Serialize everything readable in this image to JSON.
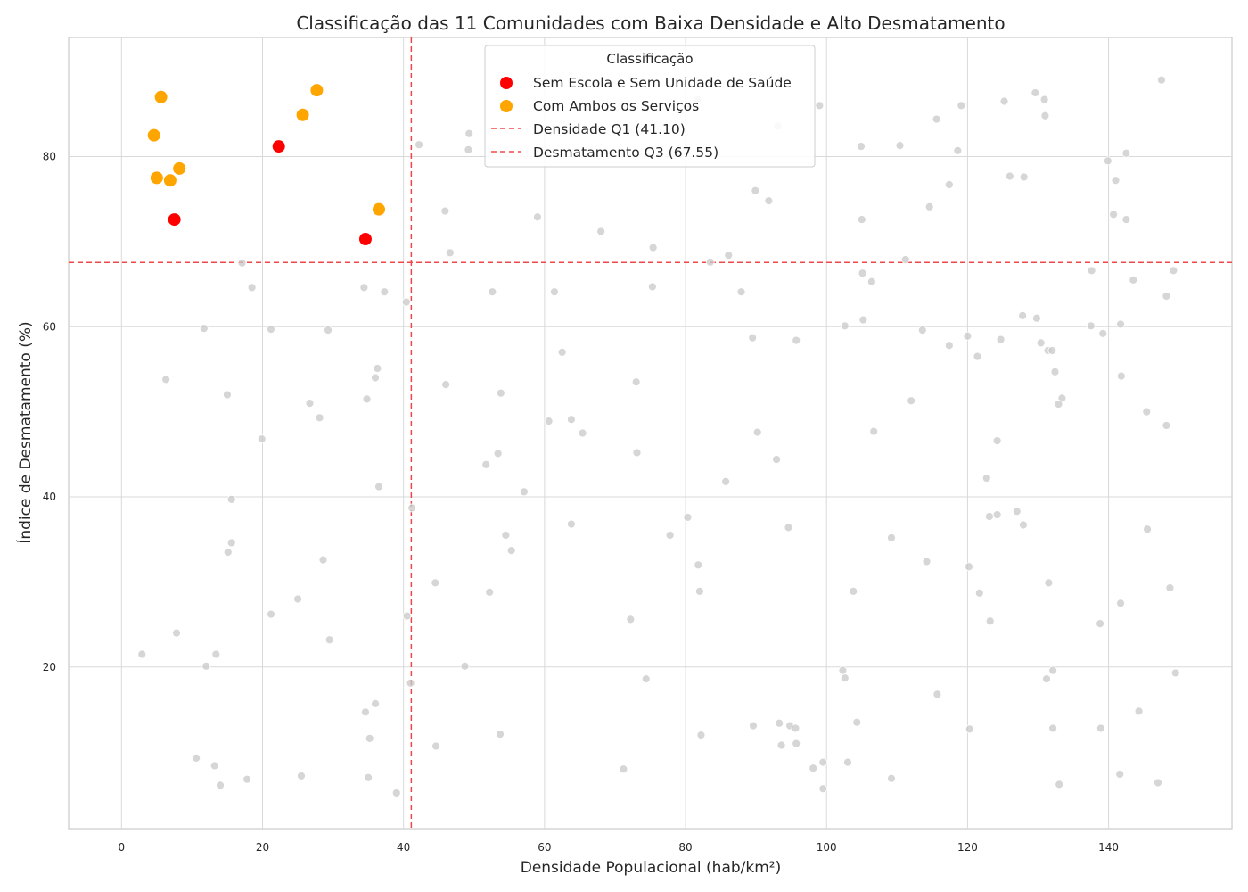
{
  "chart_data": {
    "type": "scatter",
    "title": "Classificação das 11 Comunidades com Baixa Densidade e Alto Desmatamento",
    "xlabel": "Densidade Populacional (hab/km²)",
    "ylabel": "Índice de Desmatamento (%)",
    "xlim": [
      -7.5,
      157.5
    ],
    "ylim": [
      1.0,
      94.0
    ],
    "xticks": [
      "0",
      "20",
      "40",
      "60",
      "80",
      "100",
      "120",
      "140"
    ],
    "yticks": [
      "20",
      "40",
      "60",
      "80"
    ],
    "grid": true,
    "legend": {
      "title": "Classificação",
      "placement": "top-center",
      "entries": [
        "Sem Escola e Sem Unidade de Saúde",
        "Com Ambos os Serviços",
        "Densidade Q1 (41.10)",
        "Desmatamento Q3 (67.55)"
      ]
    },
    "reference_lines": [
      {
        "axis": "x",
        "value": 41.1,
        "label": "Densidade Q1 (41.10)",
        "color": "#f0484a"
      },
      {
        "axis": "y",
        "value": 67.55,
        "label": "Desmatamento Q3 (67.55)",
        "color": "#f0484a"
      }
    ],
    "series": [
      {
        "name": "Sem Escola e Sem Unidade de Saúde",
        "color": "#ff0000",
        "points": [
          [
            22.3,
            81.2
          ],
          [
            7.5,
            72.6
          ],
          [
            34.6,
            70.3
          ]
        ]
      },
      {
        "name": "Com Ambos os Serviços",
        "color": "#ffa500",
        "points": [
          [
            5.6,
            87.0
          ],
          [
            4.6,
            82.5
          ],
          [
            27.7,
            87.8
          ],
          [
            25.7,
            84.9
          ],
          [
            8.2,
            78.6
          ],
          [
            5.0,
            77.5
          ],
          [
            6.9,
            77.2
          ],
          [
            36.5,
            73.8
          ]
        ]
      },
      {
        "color": "#c8c8c8",
        "points": [
          [
            147.5,
            89.0
          ],
          [
            129.6,
            87.5
          ],
          [
            130.9,
            86.7
          ],
          [
            125.2,
            86.5
          ],
          [
            119.1,
            86.0
          ],
          [
            99.0,
            86.0
          ],
          [
            81.7,
            86.7
          ],
          [
            131.0,
            84.8
          ],
          [
            115.6,
            84.4
          ],
          [
            93.1,
            83.6
          ],
          [
            49.3,
            82.7
          ],
          [
            42.2,
            81.4
          ],
          [
            104.9,
            81.2
          ],
          [
            110.4,
            81.3
          ],
          [
            49.2,
            80.8
          ],
          [
            118.6,
            80.7
          ],
          [
            142.5,
            80.4
          ],
          [
            139.9,
            79.5
          ],
          [
            126.0,
            77.7
          ],
          [
            128.0,
            77.6
          ],
          [
            141.0,
            77.2
          ],
          [
            117.4,
            76.7
          ],
          [
            89.9,
            76.0
          ],
          [
            91.8,
            74.8
          ],
          [
            114.6,
            74.1
          ],
          [
            45.9,
            73.6
          ],
          [
            140.7,
            73.2
          ],
          [
            59.0,
            72.9
          ],
          [
            105.0,
            72.6
          ],
          [
            142.5,
            72.6
          ],
          [
            68.0,
            71.2
          ],
          [
            75.4,
            69.3
          ],
          [
            46.6,
            68.7
          ],
          [
            86.1,
            68.4
          ],
          [
            111.2,
            67.9
          ],
          [
            83.5,
            67.6
          ],
          [
            17.1,
            67.5
          ],
          [
            137.6,
            66.6
          ],
          [
            149.2,
            66.6
          ],
          [
            105.1,
            66.3
          ],
          [
            106.4,
            65.3
          ],
          [
            143.5,
            65.5
          ],
          [
            18.5,
            64.6
          ],
          [
            34.4,
            64.6
          ],
          [
            75.3,
            64.7
          ],
          [
            37.3,
            64.1
          ],
          [
            52.6,
            64.1
          ],
          [
            61.4,
            64.1
          ],
          [
            87.9,
            64.1
          ],
          [
            148.2,
            63.6
          ],
          [
            40.4,
            62.9
          ],
          [
            127.8,
            61.3
          ],
          [
            129.8,
            61.0
          ],
          [
            105.2,
            60.8
          ],
          [
            102.6,
            60.1
          ],
          [
            137.5,
            60.1
          ],
          [
            141.7,
            60.3
          ],
          [
            11.7,
            59.8
          ],
          [
            21.2,
            59.7
          ],
          [
            29.3,
            59.6
          ],
          [
            113.6,
            59.6
          ],
          [
            139.2,
            59.2
          ],
          [
            120.0,
            58.9
          ],
          [
            89.5,
            58.7
          ],
          [
            95.7,
            58.4
          ],
          [
            124.7,
            58.5
          ],
          [
            130.4,
            58.1
          ],
          [
            117.4,
            57.8
          ],
          [
            62.5,
            57.0
          ],
          [
            131.4,
            57.2
          ],
          [
            132.0,
            57.2
          ],
          [
            121.4,
            56.5
          ],
          [
            36.3,
            55.1
          ],
          [
            132.4,
            54.7
          ],
          [
            36.0,
            54.0
          ],
          [
            6.3,
            53.8
          ],
          [
            141.8,
            54.2
          ],
          [
            46.0,
            53.2
          ],
          [
            73.0,
            53.5
          ],
          [
            15.0,
            52.0
          ],
          [
            34.8,
            51.5
          ],
          [
            53.8,
            52.2
          ],
          [
            112.0,
            51.3
          ],
          [
            133.4,
            51.6
          ],
          [
            26.7,
            51.0
          ],
          [
            132.9,
            50.9
          ],
          [
            145.4,
            50.0
          ],
          [
            28.1,
            49.3
          ],
          [
            60.6,
            48.9
          ],
          [
            63.8,
            49.1
          ],
          [
            148.2,
            48.4
          ],
          [
            65.4,
            47.5
          ],
          [
            90.2,
            47.6
          ],
          [
            106.7,
            47.7
          ],
          [
            19.9,
            46.8
          ],
          [
            124.2,
            46.6
          ],
          [
            53.4,
            45.1
          ],
          [
            73.1,
            45.2
          ],
          [
            92.9,
            44.4
          ],
          [
            51.7,
            43.8
          ],
          [
            122.7,
            42.2
          ],
          [
            85.7,
            41.8
          ],
          [
            36.5,
            41.2
          ],
          [
            57.1,
            40.6
          ],
          [
            15.6,
            39.7
          ],
          [
            41.2,
            38.7
          ],
          [
            127.0,
            38.3
          ],
          [
            123.1,
            37.7
          ],
          [
            124.2,
            37.9
          ],
          [
            80.3,
            37.6
          ],
          [
            63.8,
            36.8
          ],
          [
            127.9,
            36.7
          ],
          [
            94.6,
            36.4
          ],
          [
            145.5,
            36.2
          ],
          [
            54.5,
            35.5
          ],
          [
            77.8,
            35.5
          ],
          [
            109.2,
            35.2
          ],
          [
            15.6,
            34.6
          ],
          [
            15.1,
            33.5
          ],
          [
            55.3,
            33.7
          ],
          [
            28.6,
            32.6
          ],
          [
            114.2,
            32.4
          ],
          [
            81.8,
            32.0
          ],
          [
            120.2,
            31.8
          ],
          [
            131.5,
            29.9
          ],
          [
            44.5,
            29.9
          ],
          [
            148.7,
            29.3
          ],
          [
            82.0,
            28.9
          ],
          [
            52.2,
            28.8
          ],
          [
            103.8,
            28.9
          ],
          [
            121.7,
            28.7
          ],
          [
            25.0,
            28.0
          ],
          [
            141.7,
            27.5
          ],
          [
            21.2,
            26.2
          ],
          [
            40.5,
            26.0
          ],
          [
            72.2,
            25.6
          ],
          [
            123.2,
            25.4
          ],
          [
            138.8,
            25.1
          ],
          [
            7.8,
            24.0
          ],
          [
            29.5,
            23.2
          ],
          [
            2.9,
            21.5
          ],
          [
            13.4,
            21.5
          ],
          [
            12.0,
            20.1
          ],
          [
            48.7,
            20.1
          ],
          [
            102.3,
            19.6
          ],
          [
            132.1,
            19.6
          ],
          [
            149.5,
            19.3
          ],
          [
            74.4,
            18.6
          ],
          [
            102.6,
            18.7
          ],
          [
            131.2,
            18.6
          ],
          [
            41.0,
            18.1
          ],
          [
            115.7,
            16.8
          ],
          [
            36.0,
            15.7
          ],
          [
            34.6,
            14.7
          ],
          [
            144.3,
            14.8
          ],
          [
            104.3,
            13.5
          ],
          [
            93.3,
            13.4
          ],
          [
            89.6,
            13.1
          ],
          [
            94.8,
            13.1
          ],
          [
            95.6,
            12.8
          ],
          [
            120.3,
            12.7
          ],
          [
            132.1,
            12.8
          ],
          [
            138.9,
            12.8
          ],
          [
            53.7,
            12.1
          ],
          [
            82.2,
            12.0
          ],
          [
            35.2,
            11.6
          ],
          [
            44.6,
            10.7
          ],
          [
            93.6,
            10.8
          ],
          [
            95.7,
            11.0
          ],
          [
            10.6,
            9.3
          ],
          [
            99.5,
            8.8
          ],
          [
            103.0,
            8.8
          ],
          [
            13.2,
            8.4
          ],
          [
            71.2,
            8.0
          ],
          [
            98.1,
            8.1
          ],
          [
            25.5,
            7.2
          ],
          [
            35.0,
            7.0
          ],
          [
            17.8,
            6.8
          ],
          [
            109.2,
            6.9
          ],
          [
            141.6,
            7.4
          ],
          [
            14.0,
            6.1
          ],
          [
            133.0,
            6.2
          ],
          [
            147.0,
            6.4
          ],
          [
            99.5,
            5.7
          ],
          [
            39.0,
            5.2
          ]
        ]
      }
    ]
  }
}
